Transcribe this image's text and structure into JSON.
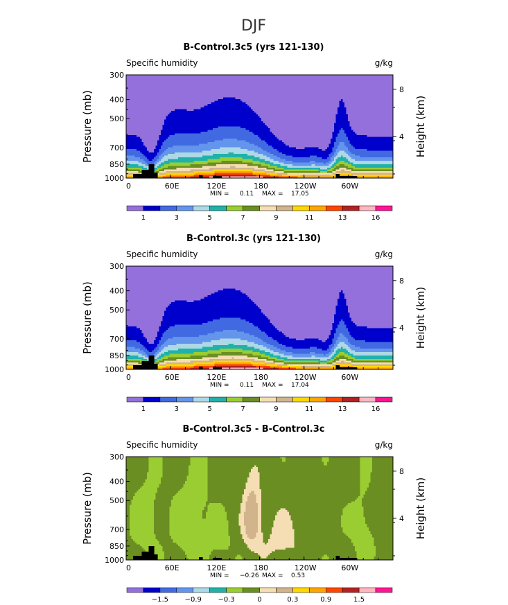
{
  "page_title": "DJF",
  "colorbar_colors": [
    "#9370db",
    "#0000cd",
    "#4169e1",
    "#6495ed",
    "#add8e6",
    "#20b2aa",
    "#9acd32",
    "#6b8e23",
    "#f5deb3",
    "#d2b48c",
    "#ffd700",
    "#ffa500",
    "#ff4500",
    "#b22222",
    "#ffb6c1",
    "#ff1493"
  ],
  "chart_data": [
    {
      "type": "contour",
      "title": "B-Control.3c5 (yrs 121-130)",
      "left_label": "Specific humidity",
      "right_label": "g/kg",
      "ylabel": "Pressure (mb)",
      "y2label": "Height (km)",
      "ylim": [
        1000,
        300
      ],
      "yticks": [
        "300",
        "400",
        "500",
        "700",
        "850",
        "1000"
      ],
      "y2ticks": [
        "8",
        "4"
      ],
      "xlim": [
        0,
        360
      ],
      "xticks": [
        "0",
        "60E",
        "120E",
        "180",
        "120W",
        "60W"
      ],
      "stats": {
        "min_label": "MIN =",
        "min": "0.11",
        "max_label": "MAX =",
        "max": "17.05"
      },
      "colorbar_labels": [
        "1",
        "3",
        "5",
        "7",
        "9",
        "11",
        "13",
        "16"
      ],
      "mode": "abs",
      "peak": 17.05
    },
    {
      "type": "contour",
      "title": "B-Control.3c (yrs 121-130)",
      "left_label": "Specific humidity",
      "right_label": "g/kg",
      "ylabel": "Pressure (mb)",
      "y2label": "Height (km)",
      "ylim": [
        1000,
        300
      ],
      "yticks": [
        "300",
        "400",
        "500",
        "700",
        "850",
        "1000"
      ],
      "y2ticks": [
        "8",
        "4"
      ],
      "xlim": [
        0,
        360
      ],
      "xticks": [
        "0",
        "60E",
        "120E",
        "180",
        "120W",
        "60W"
      ],
      "stats": {
        "min_label": "MIN =",
        "min": "0.11",
        "max_label": "MAX =",
        "max": "17.04"
      },
      "colorbar_labels": [
        "1",
        "3",
        "5",
        "7",
        "9",
        "11",
        "13",
        "16"
      ],
      "mode": "abs",
      "peak": 17.04
    },
    {
      "type": "contour",
      "title": "B-Control.3c5 - B-Control.3c",
      "left_label": "Specific humidity",
      "right_label": "g/kg",
      "ylabel": "Pressure (mb)",
      "y2label": "Height (km)",
      "ylim": [
        1000,
        300
      ],
      "yticks": [
        "300",
        "400",
        "500",
        "700",
        "850",
        "1000"
      ],
      "y2ticks": [
        "8",
        "4"
      ],
      "xlim": [
        0,
        360
      ],
      "xticks": [
        "0",
        "60E",
        "120E",
        "180",
        "120W",
        "60W"
      ],
      "stats": {
        "min_label": "MIN =",
        "min": "−0.26",
        "max_label": "MAX =",
        "max": "0.53"
      },
      "colorbar_labels": [
        "−1.5",
        "−0.9",
        "−0.3",
        "0",
        "0.3",
        "0.9",
        "1.5"
      ],
      "mode": "diff",
      "min_value": -0.26,
      "max_value": 0.53
    }
  ]
}
